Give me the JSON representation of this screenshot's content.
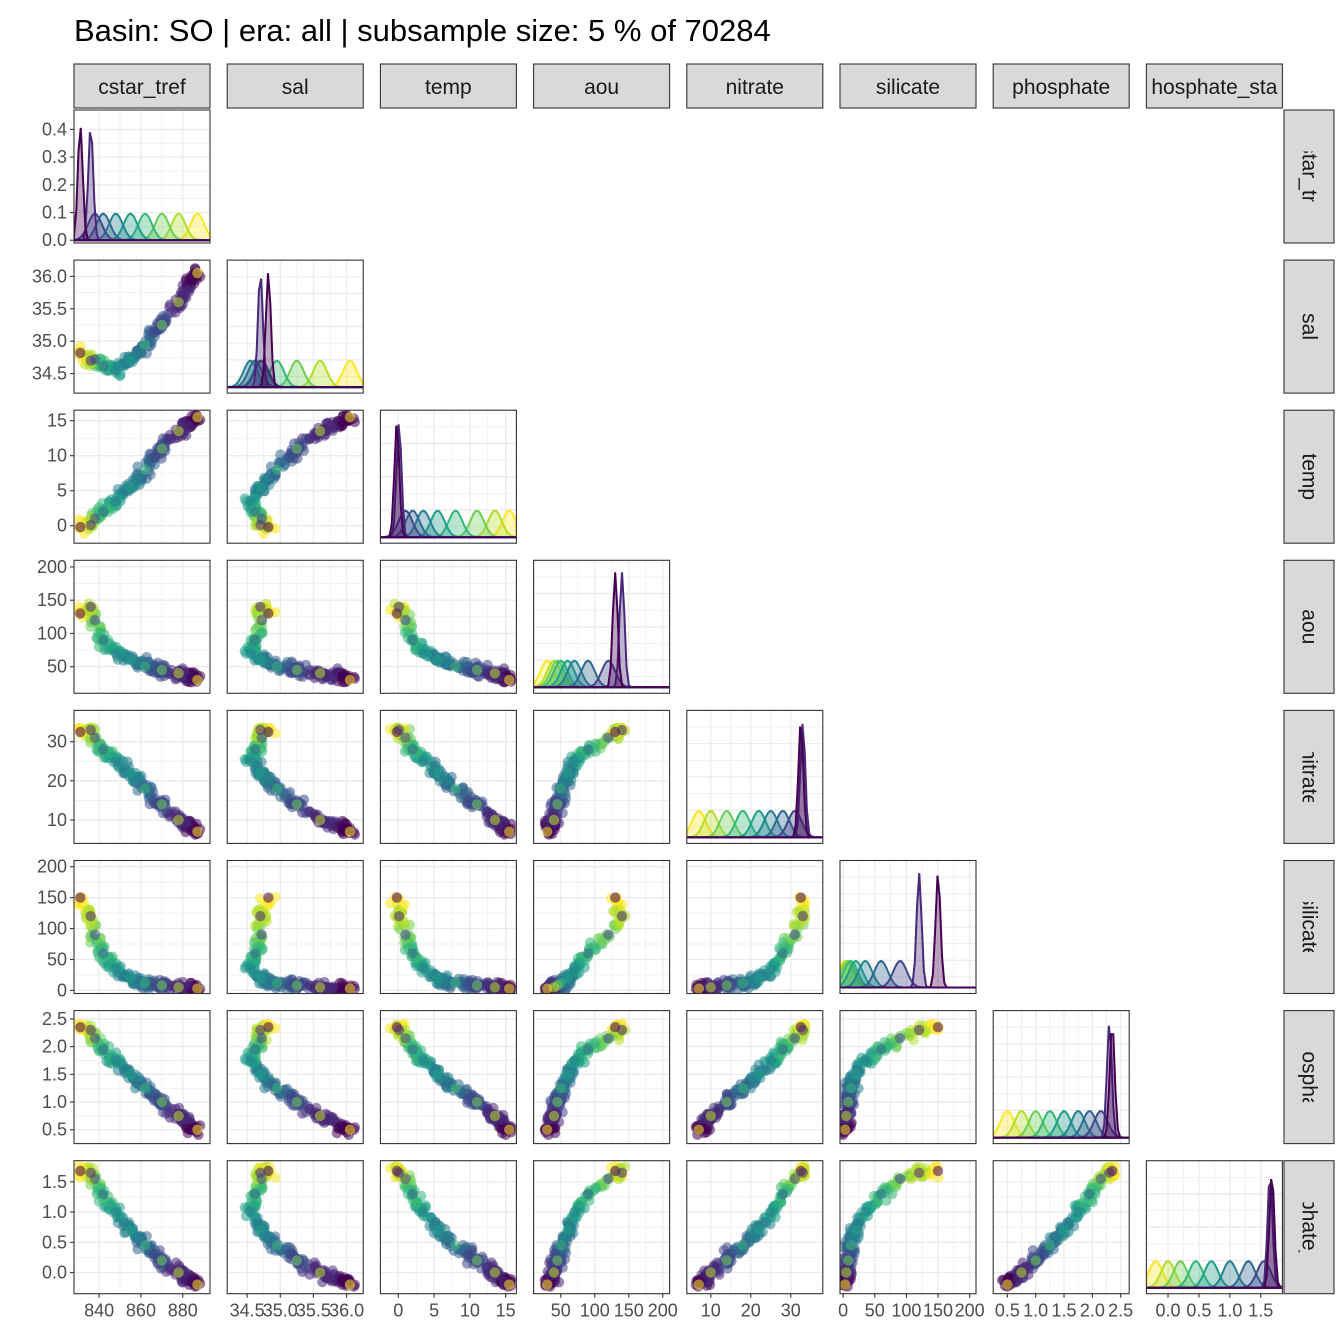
{
  "title": "Basin: SO | era: all | subsample size: 5 % of 70284",
  "colors": {
    "panel_border": "#333333",
    "strip_fill": "#d9d9d9",
    "grid": "#ebebeb",
    "palette": [
      "#fde725",
      "#b5de2b",
      "#6ece58",
      "#35b779",
      "#1f9e89",
      "#26828e",
      "#31688e",
      "#3e4989",
      "#482878",
      "#440154"
    ]
  },
  "chart_data": {
    "type": "scatter",
    "layout": "pairs-matrix-lower-triangle",
    "diagonal": "density",
    "variables": [
      {
        "name": "cstar_tref",
        "strip_top": "cstar_tref",
        "strip_right": "cstar_tref",
        "range": [
          2828,
          2893
        ],
        "ticks": [
          {
            "v": 2840,
            "label": "840"
          },
          {
            "v": 2860,
            "label": "860"
          },
          {
            "v": 2880,
            "label": "880"
          }
        ],
        "density_ticks": [
          {
            "v": 0.4,
            "label": "0.4"
          },
          {
            "v": 0.3,
            "label": "0.3"
          },
          {
            "v": 0.2,
            "label": "0.2"
          },
          {
            "v": 0.1,
            "label": "0.1"
          },
          {
            "v": 0.0,
            "label": "0.0"
          }
        ],
        "density_range": [
          -0.01,
          0.47
        ]
      },
      {
        "name": "sal",
        "strip_top": "sal",
        "strip_right": "sal",
        "range": [
          34.2,
          36.25
        ],
        "ticks": [
          {
            "v": 34.5,
            "label": "34.5"
          },
          {
            "v": 35.0,
            "label": "35.0"
          },
          {
            "v": 35.5,
            "label": "35.5"
          },
          {
            "v": 36.0,
            "label": "36.0"
          }
        ]
      },
      {
        "name": "temp",
        "strip_top": "temp",
        "strip_right": "temp",
        "range": [
          -2.5,
          16.5
        ],
        "ticks": [
          {
            "v": 0,
            "label": "0"
          },
          {
            "v": 5,
            "label": "5"
          },
          {
            "v": 10,
            "label": "10"
          },
          {
            "v": 15,
            "label": "15"
          }
        ]
      },
      {
        "name": "aou",
        "strip_top": "aou",
        "strip_right": "aou",
        "range": [
          10,
          210
        ],
        "ticks": [
          {
            "v": 50,
            "label": "50"
          },
          {
            "v": 100,
            "label": "100"
          },
          {
            "v": 150,
            "label": "150"
          },
          {
            "v": 200,
            "label": "200"
          }
        ]
      },
      {
        "name": "nitrate",
        "strip_top": "nitrate",
        "strip_right": "nitrate",
        "range": [
          4,
          38
        ],
        "ticks": [
          {
            "v": 10,
            "label": "10"
          },
          {
            "v": 20,
            "label": "20"
          },
          {
            "v": 30,
            "label": "30"
          }
        ]
      },
      {
        "name": "silicate",
        "strip_top": "silicate",
        "strip_right": "silicate",
        "range": [
          -5,
          210
        ],
        "ticks": [
          {
            "v": 0,
            "label": "0"
          },
          {
            "v": 50,
            "label": "50"
          },
          {
            "v": 100,
            "label": "100"
          },
          {
            "v": 150,
            "label": "150"
          },
          {
            "v": 200,
            "label": "200"
          }
        ]
      },
      {
        "name": "phosphate",
        "strip_top": "phosphate",
        "strip_right": "phosphate",
        "range": [
          0.25,
          2.65
        ],
        "ticks": [
          {
            "v": 0.5,
            "label": "0.5"
          },
          {
            "v": 1.0,
            "label": "1.0"
          },
          {
            "v": 1.5,
            "label": "1.5"
          },
          {
            "v": 2.0,
            "label": "2.0"
          },
          {
            "v": 2.5,
            "label": "2.5"
          }
        ]
      },
      {
        "name": "phosphate_star",
        "strip_top": "hosphate_sta",
        "strip_right": "hosphate_sta",
        "range": [
          -0.35,
          1.85
        ],
        "ticks": [
          {
            "v": 0.0,
            "label": "0.0"
          },
          {
            "v": 0.5,
            "label": "0.5"
          },
          {
            "v": 1.0,
            "label": "1.0"
          },
          {
            "v": 1.5,
            "label": "1.5"
          }
        ]
      }
    ],
    "sample_points": [
      {
        "cstar_tref": 2831,
        "sal": 34.82,
        "temp": -0.2,
        "aou": 130,
        "nitrate": 32.5,
        "silicate": 150,
        "phosphate": 2.35,
        "phosphate_star": 1.68,
        "group": 9
      },
      {
        "cstar_tref": 2836,
        "sal": 34.7,
        "temp": 0.1,
        "aou": 140,
        "nitrate": 33.0,
        "silicate": 120,
        "phosphate": 2.3,
        "phosphate_star": 1.65,
        "group": 8
      },
      {
        "cstar_tref": 2838,
        "sal": 34.72,
        "temp": 1.0,
        "aou": 120,
        "nitrate": 31.0,
        "silicate": 90,
        "phosphate": 2.15,
        "phosphate_star": 1.55,
        "group": 7
      },
      {
        "cstar_tref": 2842,
        "sal": 34.62,
        "temp": 2.0,
        "aou": 90,
        "nitrate": 28.0,
        "silicate": 60,
        "phosphate": 1.95,
        "phosphate_star": 1.3,
        "group": 6
      },
      {
        "cstar_tref": 2848,
        "sal": 34.55,
        "temp": 3.5,
        "aou": 70,
        "nitrate": 25.0,
        "silicate": 35,
        "phosphate": 1.75,
        "phosphate_star": 1.0,
        "group": 5
      },
      {
        "cstar_tref": 2855,
        "sal": 34.7,
        "temp": 5.5,
        "aou": 60,
        "nitrate": 22.0,
        "silicate": 20,
        "phosphate": 1.5,
        "phosphate_star": 0.7,
        "group": 4
      },
      {
        "cstar_tref": 2862,
        "sal": 34.95,
        "temp": 8.0,
        "aou": 50,
        "nitrate": 18.0,
        "silicate": 12,
        "phosphate": 1.25,
        "phosphate_star": 0.45,
        "group": 3
      },
      {
        "cstar_tref": 2870,
        "sal": 35.25,
        "temp": 11.0,
        "aou": 45,
        "nitrate": 14.0,
        "silicate": 8,
        "phosphate": 1.0,
        "phosphate_star": 0.2,
        "group": 2
      },
      {
        "cstar_tref": 2878,
        "sal": 35.6,
        "temp": 13.5,
        "aou": 40,
        "nitrate": 10.0,
        "silicate": 5,
        "phosphate": 0.75,
        "phosphate_star": 0.0,
        "group": 1
      },
      {
        "cstar_tref": 2887,
        "sal": 36.05,
        "temp": 15.5,
        "aou": 30,
        "nitrate": 7.0,
        "silicate": 3,
        "phosphate": 0.5,
        "phosphate_star": -0.2,
        "group": 0
      }
    ],
    "grid": true,
    "legend": "none"
  }
}
